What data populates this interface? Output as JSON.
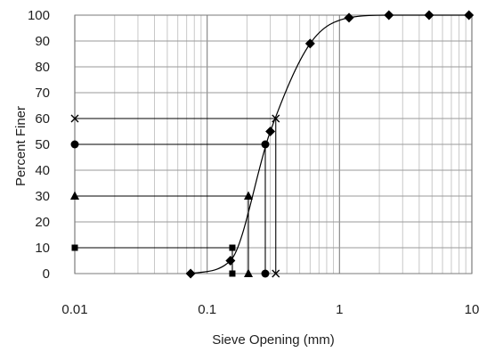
{
  "chart_data": {
    "type": "scatter",
    "title": "",
    "xlabel": "Sieve Opening (mm)",
    "ylabel": "Percent Finer",
    "x_scale": "log",
    "xlim": [
      0.01,
      10
    ],
    "ylim": [
      0,
      100
    ],
    "grid": true,
    "legend": "none",
    "x_tick_labels": [
      "0.01",
      "0.1",
      "1",
      "10"
    ],
    "x_tick_values": [
      0.01,
      0.1,
      1,
      10
    ],
    "y_tick_labels": [
      "0",
      "10",
      "20",
      "30",
      "40",
      "50",
      "60",
      "70",
      "80",
      "90",
      "100"
    ],
    "y_tick_values": [
      0,
      10,
      20,
      30,
      40,
      50,
      60,
      70,
      80,
      90,
      100
    ],
    "series": [
      {
        "marker": "diamond",
        "points": [
          {
            "x": 0.075,
            "y": 0
          },
          {
            "x": 0.15,
            "y": 5
          },
          {
            "x": 0.3,
            "y": 55
          },
          {
            "x": 0.6,
            "y": 89
          },
          {
            "x": 1.18,
            "y": 99
          },
          {
            "x": 2.36,
            "y": 100
          },
          {
            "x": 4.75,
            "y": 100
          },
          {
            "x": 9.5,
            "y": 100
          }
        ]
      },
      {
        "marker": "square",
        "points": [
          {
            "x": 0.01,
            "y": 10
          },
          {
            "x": 0.155,
            "y": 10
          },
          {
            "x": 0.155,
            "y": 0
          }
        ]
      },
      {
        "marker": "triangle",
        "points": [
          {
            "x": 0.01,
            "y": 30
          },
          {
            "x": 0.205,
            "y": 30
          },
          {
            "x": 0.205,
            "y": 0
          }
        ]
      },
      {
        "marker": "circle",
        "points": [
          {
            "x": 0.01,
            "y": 50
          },
          {
            "x": 0.275,
            "y": 50
          },
          {
            "x": 0.275,
            "y": 0
          }
        ]
      },
      {
        "marker": "x",
        "points": [
          {
            "x": 0.01,
            "y": 60
          },
          {
            "x": 0.33,
            "y": 60
          },
          {
            "x": 0.33,
            "y": 0
          }
        ]
      }
    ]
  }
}
